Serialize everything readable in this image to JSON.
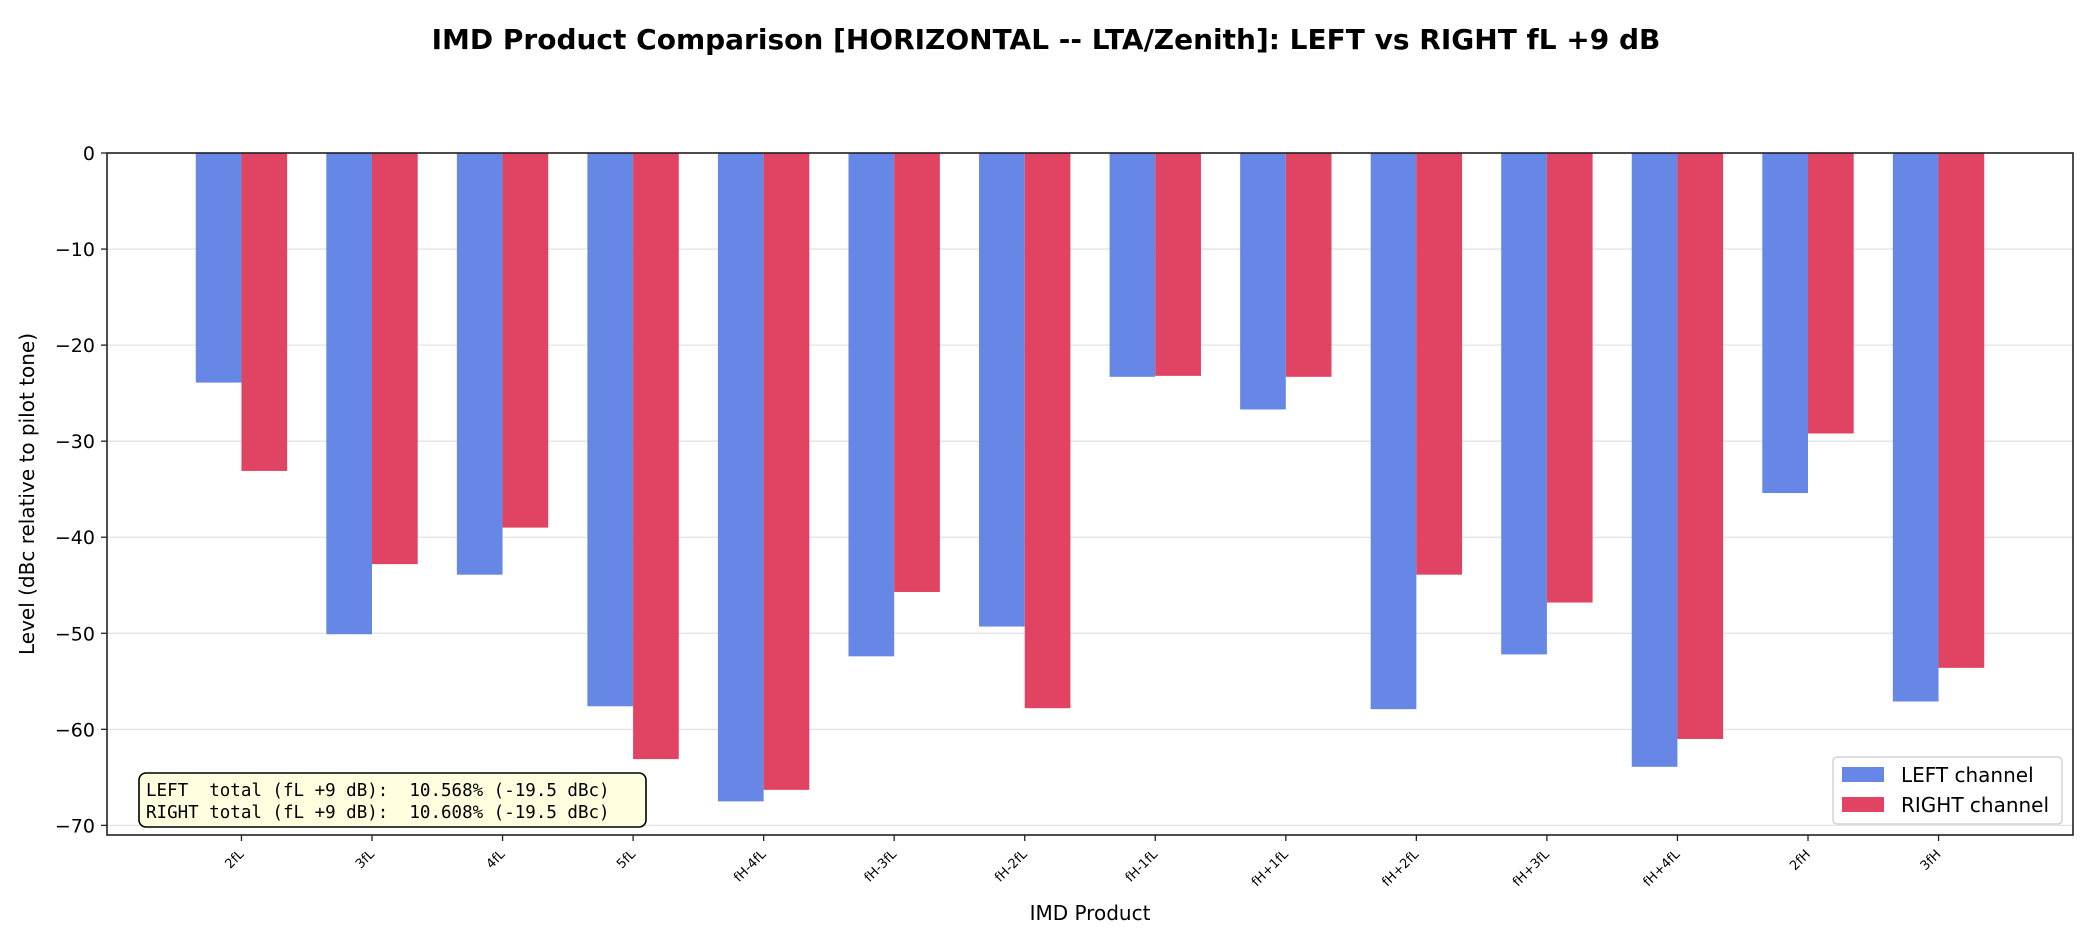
{
  "chart_data": {
    "type": "bar",
    "title": "IMD Product Comparison  [HORIZONTAL -- LTA/Zenith]:  LEFT vs RIGHT  fL +9 dB",
    "xlabel": "IMD Product",
    "ylabel": "Level (dBc relative to pilot tone)",
    "categories": [
      "2fL",
      "3fL",
      "4fL",
      "5fL",
      "fH-4fL",
      "fH-3fL",
      "fH-2fL",
      "fH-1fL",
      "fH+1fL",
      "fH+2fL",
      "fH+3fL",
      "fH+4fL",
      "2fH",
      "3fH"
    ],
    "series": [
      {
        "name": "LEFT channel",
        "color": "#6687e5",
        "values": [
          -23.9,
          -50.1,
          -43.9,
          -57.6,
          -67.5,
          -52.4,
          -49.3,
          -23.3,
          -26.7,
          -57.9,
          -52.2,
          -63.9,
          -35.4,
          -57.1
        ]
      },
      {
        "name": "RIGHT channel",
        "color": "#e14462",
        "values": [
          -33.1,
          -42.8,
          -39.0,
          -63.1,
          -66.3,
          -45.7,
          -57.8,
          -23.2,
          -23.3,
          -43.9,
          -46.8,
          -61.0,
          -29.2,
          -53.6
        ]
      }
    ],
    "ylim": [
      -71,
      0
    ],
    "yticks": [
      0,
      -10,
      -20,
      -30,
      -40,
      -50,
      -60,
      -70
    ],
    "ytick_labels": [
      "0",
      "−10",
      "−20",
      "−30",
      "−40",
      "−50",
      "−60",
      "−70"
    ],
    "grid": "horizontal",
    "legend": "bottom-right",
    "annotation": [
      "LEFT  total (fL +9 dB):  10.568% (-19.5 dBc)",
      "RIGHT total (fL +9 dB):  10.608% (-19.5 dBc)"
    ]
  }
}
